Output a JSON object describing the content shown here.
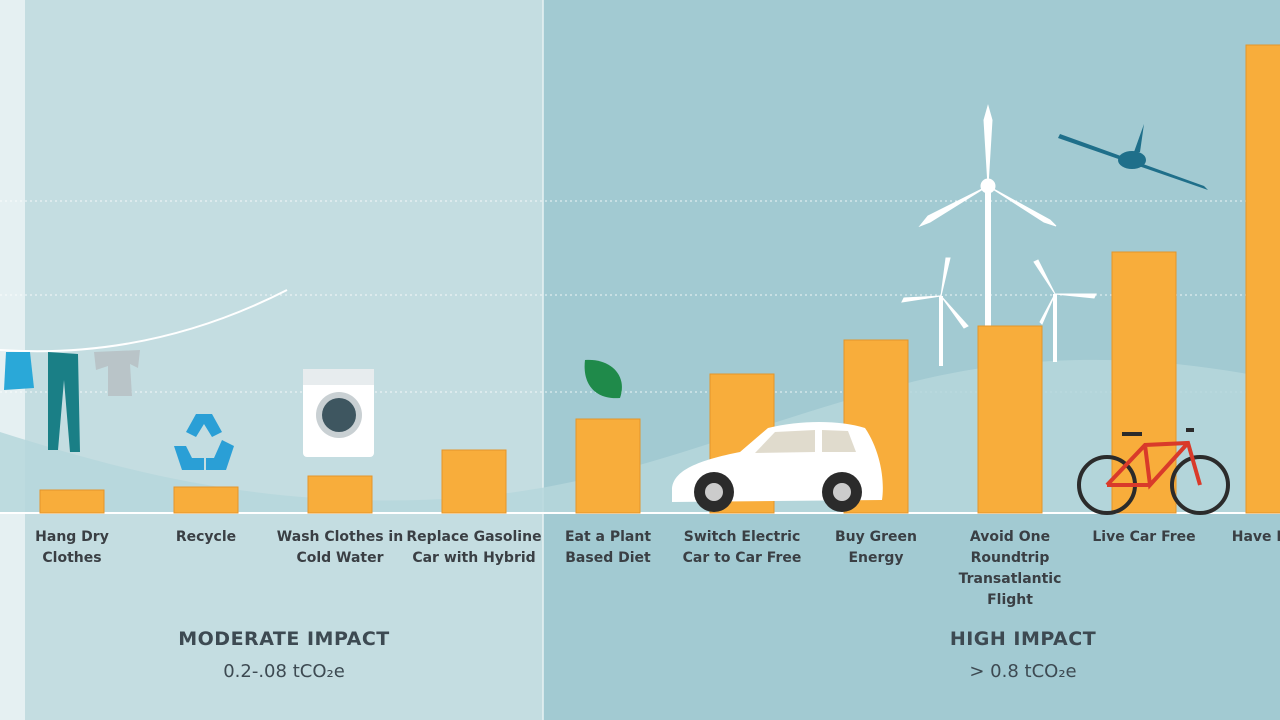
{
  "chart_data": {
    "type": "bar",
    "categories": [
      "Hang Dry Clothes",
      "Recycle",
      "Wash Clothes in Cold Water",
      "Replace Gasoline Car with Hybrid",
      "Eat a Plant Based Diet",
      "Switch Electric Car to Car Free",
      "Buy Green Energy",
      "Avoid One Roundtrip Transatlantic Flight",
      "Live Car Free",
      "Have Fewer"
    ],
    "values": [
      0.23,
      0.26,
      0.37,
      0.63,
      0.94,
      1.39,
      1.73,
      1.87,
      2.61,
      4.68
    ],
    "color": "#f8ad3b",
    "ylim": [
      0,
      4.7
    ],
    "sections": [
      {
        "title": "MODERATE IMPACT",
        "subtitle": "0.2-.08 tCO₂e"
      },
      {
        "title": "HIGH IMPACT",
        "subtitle": "> 0.8 tCO₂e"
      }
    ]
  }
}
